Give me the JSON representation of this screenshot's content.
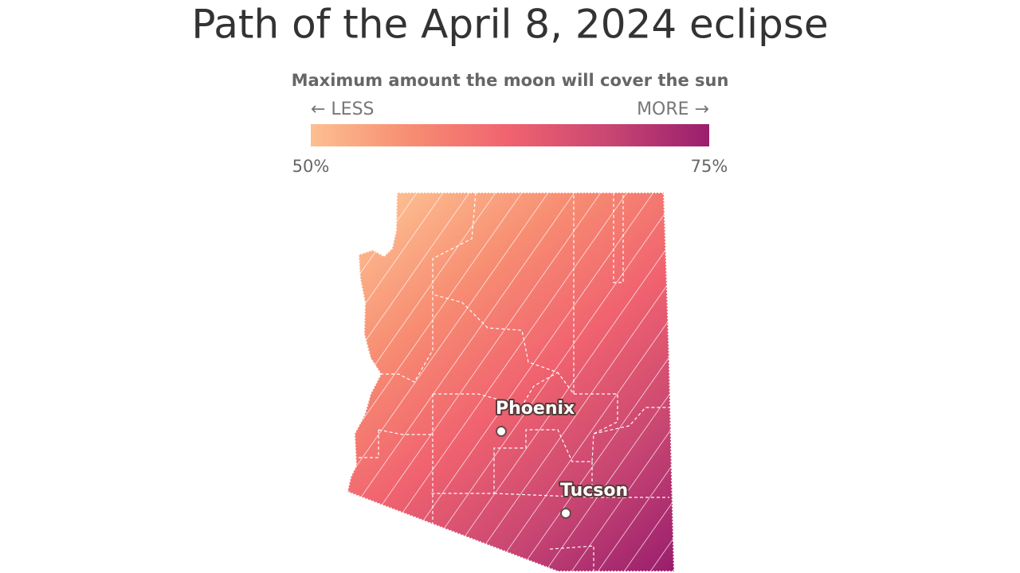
{
  "title": "Path of the April 8, 2024 eclipse",
  "legend": {
    "title": "Maximum amount the moon will cover the sun",
    "less_label": "← LESS",
    "more_label": "MORE →",
    "colors": [
      "#fdbf91",
      "#f78d72",
      "#f0626f",
      "#c84672",
      "#9a1e6e"
    ],
    "range": [
      50,
      75
    ],
    "ticks": [
      {
        "value": 50,
        "label": "50%"
      },
      {
        "value": 75,
        "label": "75%"
      }
    ]
  },
  "cities": [
    {
      "name": "Phoenix"
    },
    {
      "name": "Tucson"
    }
  ]
}
